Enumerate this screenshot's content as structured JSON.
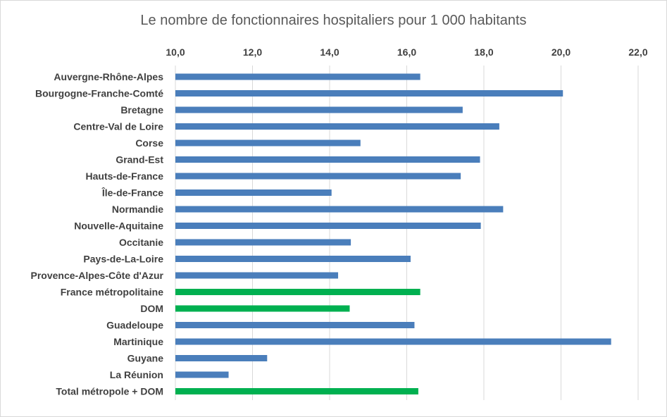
{
  "chart_data": {
    "type": "bar",
    "orientation": "horizontal",
    "title": "Le nombre de fonctionnaires hospitaliers pour 1 000 habitants",
    "xlim": [
      10,
      22
    ],
    "x_ticks": [
      "10,0",
      "12,0",
      "14,0",
      "16,0",
      "18,0",
      "20,0",
      "22,0"
    ],
    "x_axis_position": "top",
    "grid": true,
    "categories": [
      "Auvergne-Rhône-Alpes",
      "Bourgogne-Franche-Comté",
      "Bretagne",
      "Centre-Val de Loire",
      "Corse",
      "Grand-Est",
      "Hauts-de-France",
      "Île-de-France",
      "Normandie",
      "Nouvelle-Aquitaine",
      "Occitanie",
      "Pays-de-La-Loire",
      "Provence-Alpes-Côte d'Azur",
      "France métropolitaine",
      "DOM",
      "Guadeloupe",
      "Martinique",
      "Guyane",
      "La Réunion",
      "Total métropole + DOM"
    ],
    "values": [
      16.35,
      20.05,
      17.45,
      18.4,
      14.8,
      17.9,
      17.4,
      14.05,
      18.5,
      17.92,
      14.55,
      16.1,
      14.22,
      16.35,
      14.52,
      16.2,
      21.3,
      12.38,
      11.38,
      16.3
    ],
    "colors": {
      "default": "#4a7ebb",
      "highlight": "#00b050",
      "gridline": "#d9d9d9",
      "text": "#404040"
    },
    "highlighted_categories": [
      "France métropolitaine",
      "DOM",
      "Total métropole + DOM"
    ]
  }
}
